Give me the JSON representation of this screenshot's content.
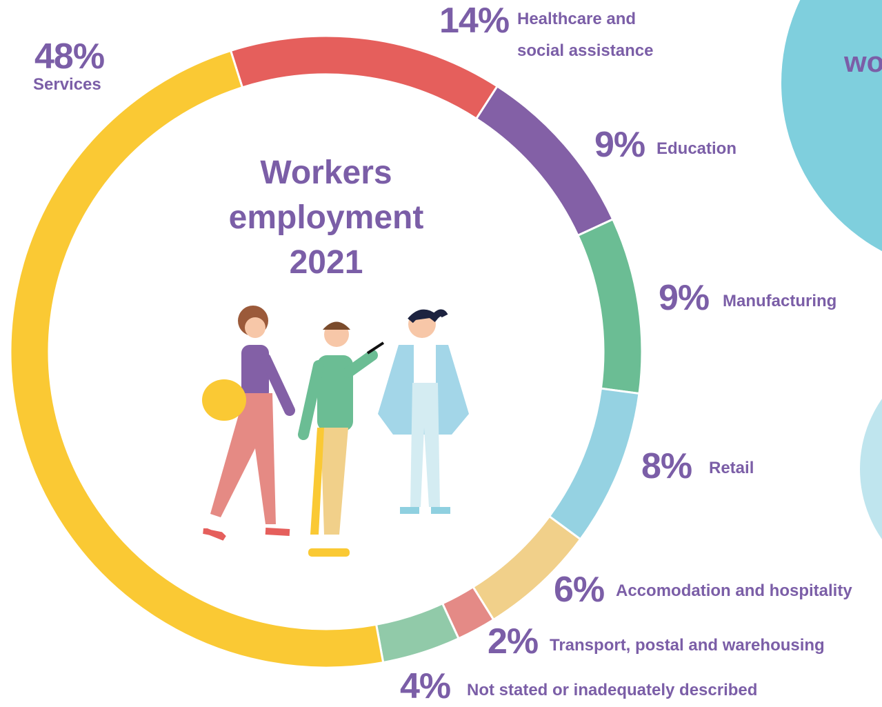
{
  "chart_data": {
    "type": "donut",
    "title": "Workers employment 2021",
    "categories": [
      "Healthcare and social assistance",
      "Education",
      "Manufacturing",
      "Retail",
      "Accomodation and hospitality",
      "Transport, postal and warehousing",
      "Not stated or inadequately described",
      "Services"
    ],
    "values": [
      14,
      9,
      9,
      8,
      6,
      2,
      4,
      48
    ],
    "value_labels": [
      "14%",
      "9%",
      "9%",
      "8%",
      "6%",
      "2%",
      "4%",
      "48%"
    ],
    "colors": [
      "#e55f5c",
      "#8360a6",
      "#6bbd94",
      "#95d2e2",
      "#f1d08a",
      "#e48a86",
      "#91caa9",
      "#fac934"
    ],
    "annotation": "wo"
  }
}
